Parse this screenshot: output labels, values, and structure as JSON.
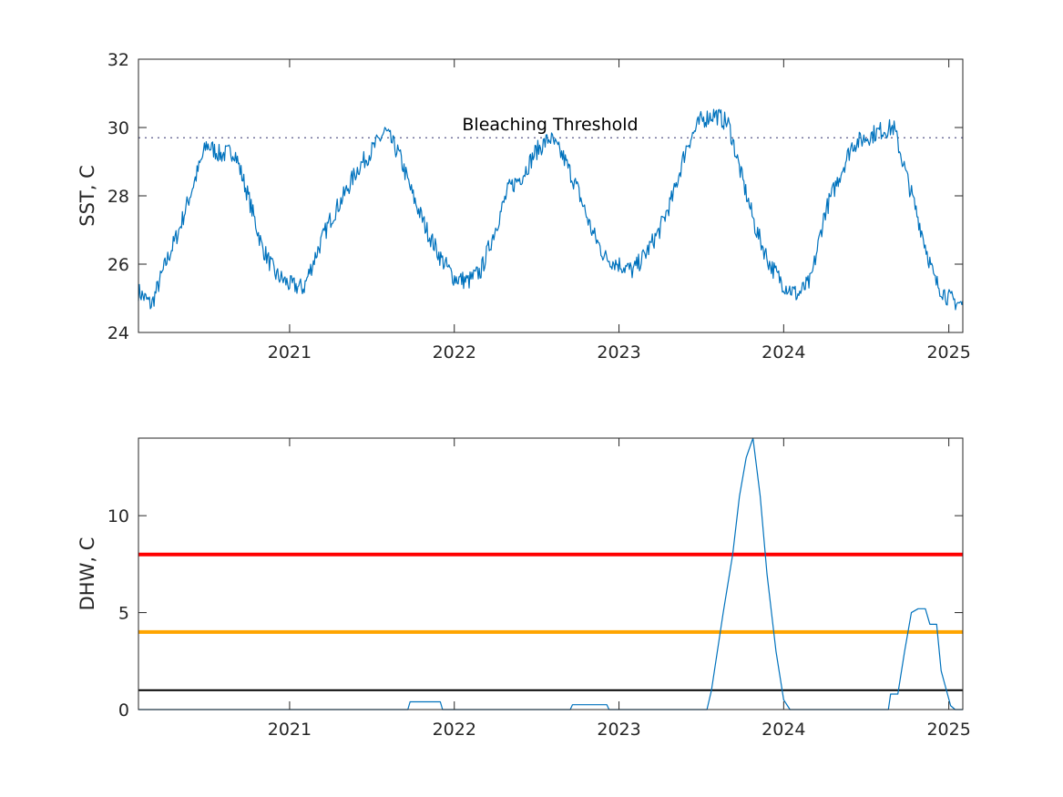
{
  "chart_data": [
    {
      "type": "line",
      "ylabel": "SST, C",
      "xlim": [
        "2020-02-01",
        "2025-02-01"
      ],
      "ylim": [
        24,
        32
      ],
      "yticks": [
        24,
        26,
        28,
        30,
        32
      ],
      "xticks": [
        "2021",
        "2022",
        "2023",
        "2024",
        "2025"
      ],
      "grid": false,
      "series_color": "#0072BD",
      "threshold": {
        "value": 29.7,
        "label": "Bleaching Threshold",
        "style": "dotted",
        "color": "#5a5a8a"
      },
      "series": [
        {
          "x": [
            "2020-02-01",
            "2020-03-01",
            "2020-04-01",
            "2020-05-01",
            "2020-06-01",
            "2020-07-01",
            "2020-08-01",
            "2020-09-01",
            "2020-10-01",
            "2020-11-01",
            "2020-12-01",
            "2021-01-01",
            "2021-02-01",
            "2021-03-01",
            "2021-04-01",
            "2021-05-01",
            "2021-06-01",
            "2021-07-01",
            "2021-08-01",
            "2021-09-01",
            "2021-10-01",
            "2021-11-01",
            "2021-12-01",
            "2022-01-01",
            "2022-02-01",
            "2022-03-01",
            "2022-04-01",
            "2022-05-01",
            "2022-06-01",
            "2022-07-01",
            "2022-08-01",
            "2022-09-01",
            "2022-10-01",
            "2022-11-01",
            "2022-12-01",
            "2023-01-01",
            "2023-02-01",
            "2023-03-01",
            "2023-04-01",
            "2023-05-01",
            "2023-06-01",
            "2023-07-01",
            "2023-08-01",
            "2023-09-01",
            "2023-10-01",
            "2023-11-01",
            "2023-12-01",
            "2024-01-01",
            "2024-02-01",
            "2024-03-01",
            "2024-04-01",
            "2024-05-01",
            "2024-06-01",
            "2024-07-01",
            "2024-08-01",
            "2024-09-01",
            "2024-10-01",
            "2024-11-01",
            "2024-12-01",
            "2025-01-01",
            "2025-02-01"
          ],
          "values": [
            25.2,
            24.8,
            26.0,
            27.0,
            28.3,
            29.5,
            29.2,
            29.3,
            28.0,
            26.5,
            25.7,
            25.4,
            25.3,
            26.3,
            27.3,
            28.0,
            28.8,
            29.3,
            29.9,
            29.2,
            28.0,
            27.0,
            26.2,
            25.6,
            25.5,
            25.8,
            27.0,
            28.2,
            28.6,
            29.3,
            29.7,
            29.1,
            28.2,
            27.0,
            26.2,
            26.0,
            25.8,
            26.3,
            27.0,
            28.0,
            29.5,
            30.2,
            30.4,
            30.1,
            28.5,
            27.0,
            26.0,
            25.4,
            25.1,
            25.5,
            27.5,
            28.5,
            29.5,
            29.7,
            29.9,
            30.0,
            28.5,
            27.0,
            25.5,
            25.0,
            24.8
          ]
        }
      ]
    },
    {
      "type": "line",
      "ylabel": "DHW, C",
      "xlim": [
        "2020-02-01",
        "2025-02-01"
      ],
      "ylim": [
        0,
        14
      ],
      "yticks": [
        0,
        5,
        10
      ],
      "xticks": [
        "2021",
        "2022",
        "2023",
        "2024",
        "2025"
      ],
      "grid": false,
      "series_color": "#0072BD",
      "reference_lines": [
        {
          "value": 8,
          "color": "#ff0000"
        },
        {
          "value": 4,
          "color": "#ffa500"
        },
        {
          "value": 1,
          "color": "#000000"
        }
      ],
      "series": [
        {
          "x": [
            "2020-02-01",
            "2021-09-20",
            "2021-09-25",
            "2021-12-01",
            "2021-12-06",
            "2022-09-15",
            "2022-09-20",
            "2022-12-05",
            "2022-12-10",
            "2023-07-15",
            "2023-07-25",
            "2023-08-20",
            "2023-09-10",
            "2023-09-25",
            "2023-10-10",
            "2023-10-25",
            "2023-11-10",
            "2023-11-25",
            "2023-12-15",
            "2024-01-01",
            "2024-01-15",
            "2024-08-20",
            "2024-08-25",
            "2024-09-10",
            "2024-09-25",
            "2024-10-10",
            "2024-10-25",
            "2024-11-10",
            "2024-11-20",
            "2024-12-05",
            "2024-12-15",
            "2025-01-05",
            "2025-01-15",
            "2025-02-01"
          ],
          "values": [
            0,
            0,
            0.4,
            0.4,
            0,
            0,
            0.25,
            0.25,
            0,
            0,
            1.0,
            5.0,
            8.0,
            11.0,
            13.0,
            14.0,
            11.0,
            7.0,
            3.0,
            0.5,
            0,
            0,
            0.8,
            0.8,
            3.0,
            5.0,
            5.2,
            5.2,
            4.4,
            4.4,
            2.0,
            0.2,
            0,
            0
          ]
        }
      ]
    }
  ]
}
